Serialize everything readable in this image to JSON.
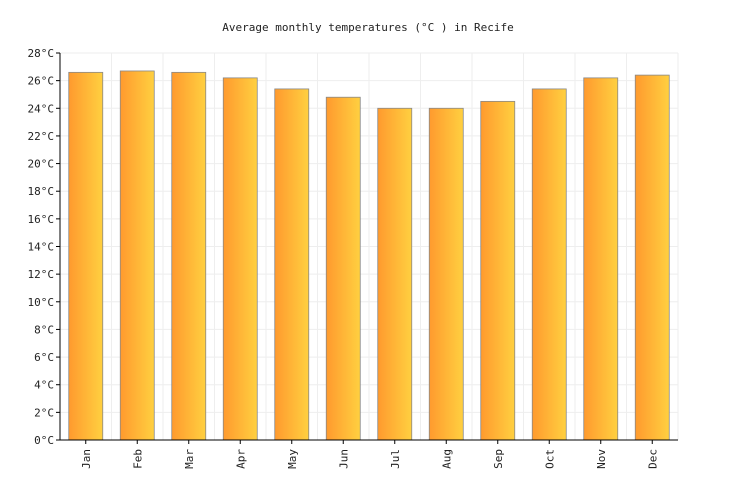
{
  "chart_data": {
    "type": "bar",
    "title": "Average monthly temperatures (°C ) in Recife",
    "categories": [
      "Jan",
      "Feb",
      "Mar",
      "Apr",
      "May",
      "Jun",
      "Jul",
      "Aug",
      "Sep",
      "Oct",
      "Nov",
      "Dec"
    ],
    "values": [
      26.6,
      26.7,
      26.6,
      26.2,
      25.4,
      24.8,
      24.0,
      24.0,
      24.5,
      25.4,
      26.2,
      26.4
    ],
    "ylim": [
      0,
      28
    ],
    "ytick_step": 2,
    "ytick_labels": [
      "0°C",
      "2°C",
      "4°C",
      "6°C",
      "8°C",
      "10°C",
      "12°C",
      "14°C",
      "16°C",
      "18°C",
      "20°C",
      "22°C",
      "24°C",
      "26°C",
      "28°C"
    ],
    "xlabel": "",
    "ylabel": "",
    "grid": true,
    "colors": {
      "bar_left": "#ff9a2e",
      "bar_right": "#ffd040",
      "bar_stroke": "#888888",
      "grid": "#eeeeee",
      "axis": "#000000"
    }
  }
}
